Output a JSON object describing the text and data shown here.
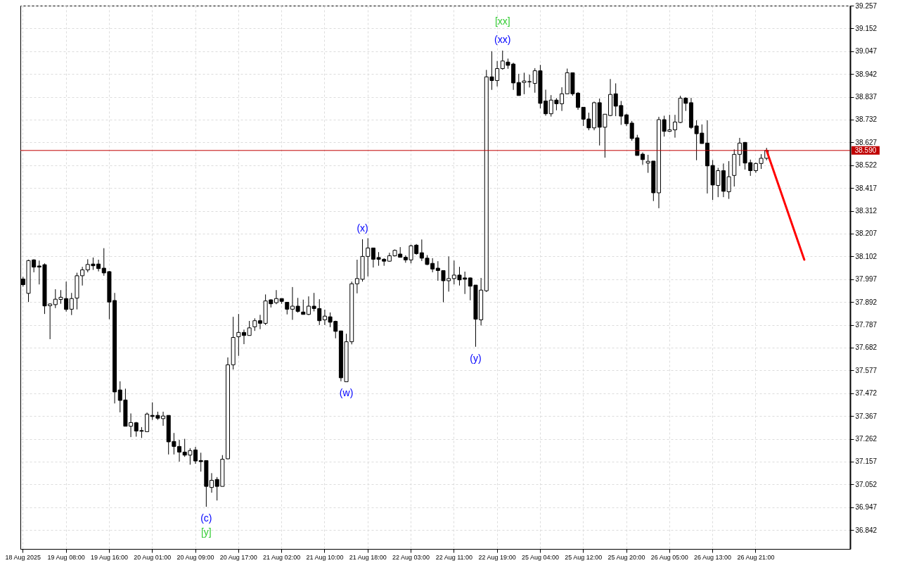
{
  "chart_data": {
    "type": "candlestick",
    "categories": [
      "18 Aug 2025",
      null,
      null,
      null,
      null,
      null,
      null,
      null,
      "19 Aug 08:00",
      null,
      null,
      null,
      null,
      null,
      null,
      null,
      "19 Aug 16:00",
      null,
      null,
      null,
      null,
      null,
      null,
      null,
      "20 Aug 01:00",
      null,
      null,
      null,
      null,
      null,
      null,
      null,
      "20 Aug 09:00",
      null,
      null,
      null,
      null,
      null,
      null,
      null,
      "20 Aug 17:00",
      null,
      null,
      null,
      null,
      null,
      null,
      null,
      "21 Aug 02:00",
      null,
      null,
      null,
      null,
      null,
      null,
      null,
      "21 Aug 10:00",
      null,
      null,
      null,
      null,
      null,
      null,
      null,
      "21 Aug 18:00",
      null,
      null,
      null,
      null,
      null,
      null,
      null,
      "22 Aug 03:00",
      null,
      null,
      null,
      null,
      null,
      null,
      null,
      "22 Aug 11:00",
      null,
      null,
      null,
      null,
      null,
      null,
      null,
      "22 Aug 19:00",
      null,
      null,
      null,
      null,
      null,
      null,
      null,
      "25 Aug 04:00",
      null,
      null,
      null,
      null,
      null,
      null,
      null,
      "25 Aug 12:00",
      null,
      null,
      null,
      null,
      null,
      null,
      null,
      "25 Aug 20:00",
      null,
      null,
      null,
      null,
      null,
      null,
      null,
      "26 Aug 05:00",
      null,
      null,
      null,
      null,
      null,
      null,
      null,
      "26 Aug 13:00",
      null,
      null,
      null,
      null,
      null,
      null,
      null,
      "26 Aug 21:00",
      null,
      null,
      null,
      null,
      null,
      null,
      null,
      null,
      null,
      null,
      null,
      null,
      null,
      null,
      null,
      null,
      null
    ],
    "series": [
      {
        "type": "candlestick",
        "color": "#000000",
        "ohlc": [
          [
            37.998,
            38.008,
            37.963,
            37.972
          ],
          [
            37.932,
            38.087,
            37.892,
            38.083
          ],
          [
            38.086,
            38.089,
            38.029,
            38.053
          ],
          [
            38.058,
            38.083,
            37.973,
            38.053
          ],
          [
            38.064,
            38.07,
            37.837,
            37.874
          ],
          [
            37.875,
            37.886,
            37.721,
            37.883
          ],
          [
            37.88,
            37.951,
            37.864,
            37.905
          ],
          [
            37.904,
            37.947,
            37.884,
            37.914
          ],
          [
            37.908,
            37.986,
            37.848,
            37.858
          ],
          [
            37.859,
            37.934,
            37.832,
            37.908
          ],
          [
            37.91,
            38.027,
            37.858,
            38.013
          ],
          [
            38.013,
            38.054,
            37.968,
            38.04
          ],
          [
            38.04,
            38.089,
            38.029,
            38.065
          ],
          [
            38.067,
            38.097,
            38.04,
            38.059
          ],
          [
            38.067,
            38.087,
            38.033,
            38.046
          ],
          [
            38.048,
            38.14,
            38.013,
            38.026
          ],
          [
            38.032,
            38.035,
            37.813,
            37.892
          ],
          [
            37.899,
            37.934,
            37.425,
            37.478
          ],
          [
            37.487,
            37.527,
            37.384,
            37.439
          ],
          [
            37.441,
            37.493,
            37.32,
            37.32
          ],
          [
            37.32,
            37.379,
            37.27,
            37.337
          ],
          [
            37.336,
            37.34,
            37.272,
            37.298
          ],
          [
            37.3,
            37.316,
            37.266,
            37.297
          ],
          [
            37.295,
            37.383,
            37.295,
            37.376
          ],
          [
            37.37,
            37.43,
            37.349,
            37.365
          ],
          [
            37.37,
            37.387,
            37.349,
            37.357
          ],
          [
            37.355,
            37.387,
            37.322,
            37.367
          ],
          [
            37.37,
            37.37,
            37.19,
            37.248
          ],
          [
            37.25,
            37.289,
            37.19,
            37.227
          ],
          [
            37.227,
            37.257,
            37.157,
            37.201
          ],
          [
            37.201,
            37.262,
            37.179,
            37.187
          ],
          [
            37.187,
            37.219,
            37.143,
            37.208
          ],
          [
            37.211,
            37.225,
            37.147,
            37.16
          ],
          [
            37.162,
            37.198,
            37.111,
            37.157
          ],
          [
            37.162,
            37.162,
            36.949,
            37.043
          ],
          [
            37.038,
            37.104,
            37.014,
            37.071
          ],
          [
            37.075,
            37.086,
            36.978,
            37.043
          ],
          [
            37.043,
            37.187,
            37.043,
            37.168
          ],
          [
            37.17,
            37.637,
            37.168,
            37.603
          ],
          [
            37.603,
            37.824,
            37.581,
            37.729
          ],
          [
            37.732,
            37.837,
            37.644,
            37.752
          ],
          [
            37.752,
            37.765,
            37.698,
            37.738
          ],
          [
            37.738,
            37.805,
            37.738,
            37.773
          ],
          [
            37.778,
            37.817,
            37.759,
            37.806
          ],
          [
            37.806,
            37.833,
            37.767,
            37.794
          ],
          [
            37.794,
            37.927,
            37.786,
            37.897
          ],
          [
            37.902,
            37.905,
            37.867,
            37.884
          ],
          [
            37.889,
            37.947,
            37.882,
            37.908
          ],
          [
            37.908,
            37.908,
            37.884,
            37.895
          ],
          [
            37.891,
            37.891,
            37.835,
            37.859
          ],
          [
            37.859,
            37.961,
            37.81,
            37.873
          ],
          [
            37.873,
            37.911,
            37.843,
            37.849
          ],
          [
            37.846,
            37.903,
            37.835,
            37.835
          ],
          [
            37.835,
            37.918,
            37.832,
            37.873
          ],
          [
            37.873,
            37.934,
            37.849,
            37.862
          ],
          [
            37.862,
            37.905,
            37.786,
            37.806
          ],
          [
            37.81,
            37.857,
            37.786,
            37.827
          ],
          [
            37.824,
            37.844,
            37.776,
            37.799
          ],
          [
            37.803,
            37.806,
            37.725,
            37.757
          ],
          [
            37.759,
            37.759,
            37.527,
            37.543
          ],
          [
            37.525,
            37.746,
            37.525,
            37.709
          ],
          [
            37.709,
            37.986,
            37.697,
            37.976
          ],
          [
            37.976,
            38.087,
            37.932,
            38.0
          ],
          [
            37.997,
            38.181,
            37.986,
            38.102
          ],
          [
            38.102,
            38.186,
            38.01,
            38.141
          ],
          [
            38.141,
            38.141,
            38.051,
            38.089
          ],
          [
            38.097,
            38.122,
            38.059,
            38.089
          ],
          [
            38.089,
            38.094,
            38.059,
            38.08
          ],
          [
            38.08,
            38.119,
            38.078,
            38.105
          ],
          [
            38.105,
            38.134,
            38.102,
            38.13
          ],
          [
            38.113,
            38.145,
            38.098,
            38.098
          ],
          [
            38.098,
            38.107,
            38.073,
            38.086
          ],
          [
            38.086,
            38.156,
            38.07,
            38.151
          ],
          [
            38.154,
            38.159,
            38.11,
            38.115
          ],
          [
            38.119,
            38.18,
            38.081,
            38.094
          ],
          [
            38.094,
            38.108,
            38.062,
            38.065
          ],
          [
            38.07,
            38.094,
            38.029,
            38.044
          ],
          [
            38.048,
            38.08,
            37.99,
            38.037
          ],
          [
            38.037,
            38.037,
            37.891,
            37.99
          ],
          [
            37.99,
            38.102,
            37.94,
            38.0
          ],
          [
            38.0,
            38.083,
            37.973,
            38.016
          ],
          [
            38.016,
            38.054,
            37.968,
            37.994
          ],
          [
            38.003,
            38.032,
            37.929,
            37.997
          ],
          [
            38.003,
            38.005,
            37.9,
            37.965
          ],
          [
            37.97,
            37.97,
            37.686,
            37.813
          ],
          [
            37.81,
            38.003,
            37.784,
            37.947
          ],
          [
            37.944,
            38.961,
            37.938,
            38.929
          ],
          [
            38.929,
            39.047,
            38.869,
            38.912
          ],
          [
            38.912,
            39.002,
            38.885,
            38.967
          ],
          [
            38.967,
            39.05,
            38.962,
            39.002
          ],
          [
            38.997,
            39.013,
            38.966,
            38.982
          ],
          [
            38.988,
            38.994,
            38.869,
            38.901
          ],
          [
            38.903,
            38.943,
            38.843,
            38.843
          ],
          [
            38.903,
            38.948,
            38.849,
            38.91
          ],
          [
            38.906,
            38.939,
            38.88,
            38.907
          ],
          [
            38.899,
            38.969,
            38.856,
            38.957
          ],
          [
            38.957,
            38.984,
            38.784,
            38.807
          ],
          [
            38.818,
            38.87,
            38.75,
            38.759
          ],
          [
            38.759,
            38.845,
            38.746,
            38.822
          ],
          [
            38.822,
            38.831,
            38.775,
            38.805
          ],
          [
            38.805,
            38.881,
            38.772,
            38.851
          ],
          [
            38.851,
            38.967,
            38.851,
            38.948
          ],
          [
            38.948,
            38.948,
            38.842,
            38.851
          ],
          [
            38.854,
            38.859,
            38.777,
            38.788
          ],
          [
            38.789,
            38.789,
            38.703,
            38.734
          ],
          [
            38.735,
            38.764,
            38.683,
            38.694
          ],
          [
            38.694,
            38.815,
            38.683,
            38.81
          ],
          [
            38.81,
            38.829,
            38.613,
            38.697
          ],
          [
            38.697,
            38.757,
            38.557,
            38.757
          ],
          [
            38.751,
            38.919,
            38.748,
            38.848
          ],
          [
            38.851,
            38.899,
            38.748,
            38.794
          ],
          [
            38.797,
            38.818,
            38.708,
            38.748
          ],
          [
            38.754,
            38.759,
            38.702,
            38.713
          ],
          [
            38.716,
            38.726,
            38.635,
            38.645
          ],
          [
            38.648,
            38.662,
            38.567,
            38.567
          ],
          [
            38.573,
            38.581,
            38.524,
            38.548
          ],
          [
            38.532,
            38.57,
            38.487,
            38.54
          ],
          [
            38.541,
            38.541,
            38.357,
            38.395
          ],
          [
            38.395,
            38.745,
            38.324,
            38.732
          ],
          [
            38.732,
            38.75,
            38.654,
            38.678
          ],
          [
            38.678,
            38.754,
            38.675,
            38.685
          ],
          [
            38.685,
            38.754,
            38.649,
            38.721
          ],
          [
            38.719,
            38.842,
            38.716,
            38.831
          ],
          [
            38.831,
            38.835,
            38.772,
            38.807
          ],
          [
            38.81,
            38.832,
            38.689,
            38.696
          ],
          [
            38.703,
            38.729,
            38.545,
            38.667
          ],
          [
            38.67,
            38.71,
            38.622,
            38.622
          ],
          [
            38.624,
            38.729,
            38.392,
            38.519
          ],
          [
            38.521,
            38.546,
            38.362,
            38.431
          ],
          [
            38.429,
            38.51,
            38.375,
            38.497
          ],
          [
            38.497,
            38.53,
            38.375,
            38.402
          ],
          [
            38.4,
            38.541,
            38.367,
            38.469
          ],
          [
            38.475,
            38.595,
            38.424,
            38.572
          ],
          [
            38.572,
            38.648,
            38.519,
            38.624
          ],
          [
            38.627,
            38.629,
            38.502,
            38.532
          ],
          [
            38.534,
            38.548,
            38.473,
            38.497
          ],
          [
            38.497,
            38.534,
            38.487,
            38.53
          ],
          [
            38.53,
            38.573,
            38.505,
            38.554
          ],
          [
            38.554,
            38.602,
            38.545,
            38.59
          ],
          null,
          null,
          null,
          null,
          null,
          null,
          null,
          null,
          null,
          null,
          null,
          null,
          null,
          null,
          null
        ]
      },
      {
        "type": "line",
        "color": "#ff0000",
        "values": [
          null,
          null,
          null,
          null,
          null,
          null,
          null,
          null,
          null,
          null,
          null,
          null,
          null,
          null,
          null,
          null,
          null,
          null,
          null,
          null,
          null,
          null,
          null,
          null,
          null,
          null,
          null,
          null,
          null,
          null,
          null,
          null,
          null,
          null,
          null,
          null,
          null,
          null,
          null,
          null,
          null,
          null,
          null,
          null,
          null,
          null,
          null,
          null,
          null,
          null,
          null,
          null,
          null,
          null,
          null,
          null,
          null,
          null,
          null,
          null,
          null,
          null,
          null,
          null,
          null,
          null,
          null,
          null,
          null,
          null,
          null,
          null,
          null,
          null,
          null,
          null,
          null,
          null,
          null,
          null,
          null,
          null,
          null,
          null,
          null,
          null,
          null,
          null,
          null,
          null,
          null,
          null,
          null,
          null,
          null,
          null,
          null,
          null,
          null,
          null,
          null,
          null,
          null,
          null,
          null,
          null,
          null,
          null,
          null,
          null,
          null,
          null,
          null,
          null,
          null,
          null,
          null,
          null,
          null,
          null,
          null,
          null,
          null,
          null,
          null,
          null,
          null,
          null,
          null,
          null,
          null,
          null,
          null,
          null,
          null,
          null,
          null,
          null,
          38.59,
          null,
          null,
          null,
          null,
          null,
          null,
          38.087,
          null,
          null,
          null,
          null,
          null,
          null,
          null,
          null
        ]
      }
    ],
    "annotations": [
      {
        "text": "(xx)",
        "y": 39.05
      },
      {
        "text": "[xx]",
        "y": 39.05
      },
      {
        "text": "(x)",
        "y": 38.181
      },
      {
        "text": "(w)",
        "y": 37.525
      },
      {
        "text": "(y)",
        "y": 37.686
      },
      {
        "text": "(c)",
        "y": 36.949
      },
      {
        "text": "[y]",
        "y": 36.949
      }
    ],
    "ref_lines": [
      {
        "axis": "y",
        "value": 38.59,
        "label": "38.590",
        "color": "#c00000"
      }
    ],
    "ylim": [
      36.755,
      39.257
    ],
    "yticks": [
      36.842,
      36.947,
      37.052,
      37.157,
      37.262,
      37.367,
      37.472,
      37.577,
      37.682,
      37.787,
      37.892,
      37.997,
      38.102,
      38.207,
      38.312,
      38.417,
      38.522,
      38.627,
      38.732,
      38.837,
      38.942,
      39.047,
      39.152,
      39.257
    ],
    "grid": true
  }
}
